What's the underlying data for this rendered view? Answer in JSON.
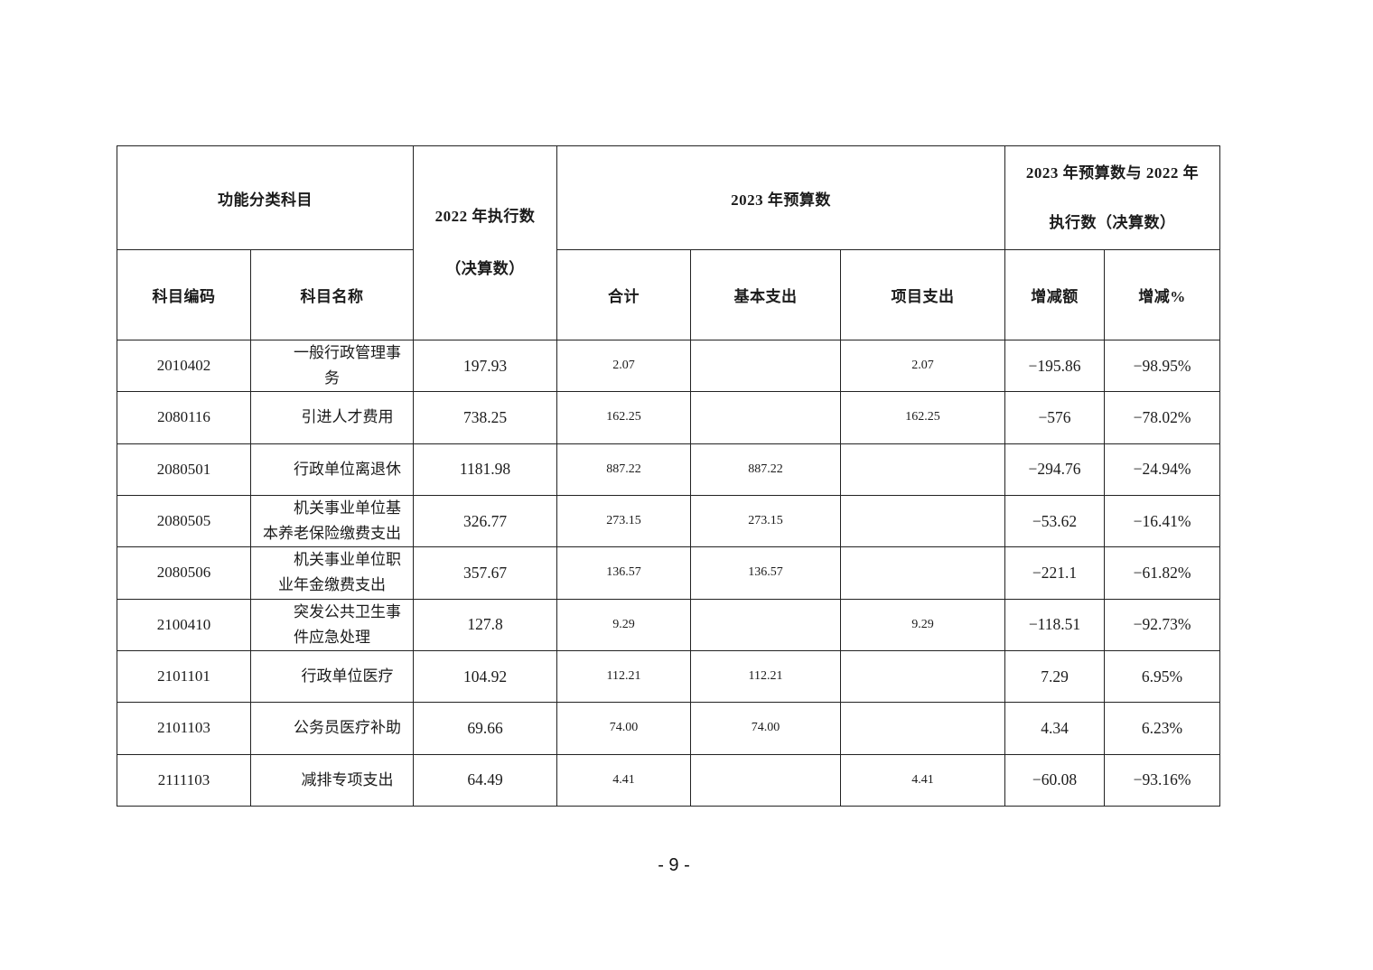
{
  "page": {
    "page_number": "- 9 -"
  },
  "table": {
    "header": {
      "func_class": "功能分类科目",
      "exec2022_lines": [
        "2022 年执行数",
        "（决算数）"
      ],
      "budget2023": "2023 年预算数",
      "compare_lines": [
        "2023 年预算数与 2022 年",
        "执行数（决算数）"
      ],
      "code": "科目编码",
      "name": "科目名称",
      "total": "合计",
      "basic": "基本支出",
      "project": "项目支出",
      "change_amount": "增减额",
      "change_percent": "增减%"
    },
    "columns": [
      "code",
      "name",
      "exec2022",
      "total",
      "basic",
      "project",
      "change_amount",
      "change_percent"
    ],
    "rows": [
      {
        "code": "2010402",
        "name": [
          "一般行政管理事",
          "务"
        ],
        "exec2022": "197.93",
        "total": "2.07",
        "basic": "",
        "project": "2.07",
        "change_amount": "−195.86",
        "change_percent": "−98.95%"
      },
      {
        "code": "2080116",
        "name": [
          "引进人才费用"
        ],
        "exec2022": "738.25",
        "total": "162.25",
        "basic": "",
        "project": "162.25",
        "change_amount": "−576",
        "change_percent": "−78.02%"
      },
      {
        "code": "2080501",
        "name": [
          "行政单位离退休"
        ],
        "exec2022": "1181.98",
        "total": "887.22",
        "basic": "887.22",
        "project": "",
        "change_amount": "−294.76",
        "change_percent": "−24.94%"
      },
      {
        "code": "2080505",
        "name": [
          "机关事业单位基",
          "本养老保险缴费支出"
        ],
        "exec2022": "326.77",
        "total": "273.15",
        "basic": "273.15",
        "project": "",
        "change_amount": "−53.62",
        "change_percent": "−16.41%"
      },
      {
        "code": "2080506",
        "name": [
          "机关事业单位职",
          "业年金缴费支出"
        ],
        "exec2022": "357.67",
        "total": "136.57",
        "basic": "136.57",
        "project": "",
        "change_amount": "−221.1",
        "change_percent": "−61.82%"
      },
      {
        "code": "2100410",
        "name": [
          "突发公共卫生事",
          "件应急处理"
        ],
        "exec2022": "127.8",
        "total": "9.29",
        "basic": "",
        "project": "9.29",
        "change_amount": "−118.51",
        "change_percent": "−92.73%"
      },
      {
        "code": "2101101",
        "name": [
          "行政单位医疗"
        ],
        "exec2022": "104.92",
        "total": "112.21",
        "basic": "112.21",
        "project": "",
        "change_amount": "7.29",
        "change_percent": "6.95%"
      },
      {
        "code": "2101103",
        "name": [
          "公务员医疗补助"
        ],
        "exec2022": "69.66",
        "total": "74.00",
        "basic": "74.00",
        "project": "",
        "change_amount": "4.34",
        "change_percent": "6.23%"
      },
      {
        "code": "2111103",
        "name": [
          "减排专项支出"
        ],
        "exec2022": "64.49",
        "total": "4.41",
        "basic": "",
        "project": "4.41",
        "change_amount": "−60.08",
        "change_percent": "−93.16%"
      }
    ]
  }
}
